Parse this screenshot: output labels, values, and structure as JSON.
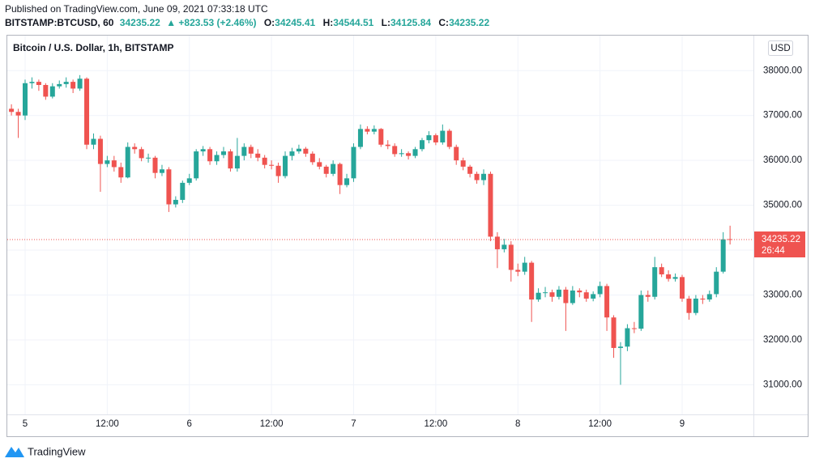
{
  "header": {
    "published": "Published on TradingView.com, June 09, 2021 07:33:18 UTC",
    "symbol": "BITSTAMP:BTCUSD, 60",
    "change": "▲ +823.53 (+2.46%)",
    "ohlc_labels": [
      "O:",
      "H:",
      "L:",
      "C:"
    ]
  },
  "footer": {
    "brand": "TradingView"
  },
  "chart_data": {
    "type": "candlestick",
    "title": "Bitcoin / U.S. Dollar, 1h, BITSTAMP",
    "currency": "USD",
    "countdown": "26:44",
    "up_color": "#26a69a",
    "down_color": "#ef5350",
    "grid": true,
    "categories": [
      null,
      null,
      "5",
      null,
      null,
      null,
      null,
      null,
      null,
      null,
      null,
      null,
      null,
      null,
      "12:00",
      null,
      null,
      null,
      null,
      null,
      null,
      null,
      null,
      null,
      null,
      null,
      "6",
      null,
      null,
      null,
      null,
      null,
      null,
      null,
      null,
      null,
      null,
      null,
      "12:00",
      null,
      null,
      null,
      null,
      null,
      null,
      null,
      null,
      null,
      null,
      null,
      "7",
      null,
      null,
      null,
      null,
      null,
      null,
      null,
      null,
      null,
      null,
      null,
      "12:00",
      null,
      null,
      null,
      null,
      null,
      null,
      null,
      null,
      null,
      null,
      null,
      "8",
      null,
      null,
      null,
      null,
      null,
      null,
      null,
      null,
      null,
      null,
      null,
      "12:00",
      null,
      null,
      null,
      null,
      null,
      null,
      null,
      null,
      null,
      null,
      null,
      "9",
      null,
      null,
      null,
      null,
      null,
      null,
      null
    ],
    "open": [
      37150,
      37080,
      37000,
      37720,
      37750,
      37680,
      37420,
      37650,
      37700,
      37750,
      37600,
      37820,
      36350,
      36480,
      35920,
      36000,
      35850,
      35620,
      36300,
      36250,
      36050,
      36060,
      35720,
      35800,
      35020,
      35120,
      35500,
      35600,
      36200,
      36250,
      35980,
      36120,
      36200,
      35820,
      36100,
      36300,
      36150,
      36060,
      35900,
      35880,
      35650,
      36100,
      36200,
      36260,
      36150,
      35960,
      35860,
      35700,
      35920,
      35450,
      35600,
      36300,
      36700,
      36640,
      36700,
      36350,
      36320,
      36140,
      36160,
      36100,
      36250,
      36450,
      36560,
      36400,
      36660,
      36300,
      36000,
      35860,
      35700,
      35560,
      35700,
      34300,
      34020,
      34120,
      33560,
      33520,
      33720,
      32900,
      33050,
      33060,
      32960,
      33120,
      32820,
      33100,
      33060,
      32920,
      33020,
      33200,
      32500,
      31820,
      31850,
      32260,
      32250,
      33000,
      32960,
      33620,
      33460,
      33360,
      33400,
      32920,
      32600,
      32920,
      32900,
      33020,
      33520,
      34245.41
    ],
    "high": [
      37250,
      37150,
      37800,
      37850,
      37800,
      37720,
      37720,
      37780,
      37850,
      37800,
      37900,
      37850,
      36600,
      36550,
      36100,
      36100,
      35950,
      36400,
      36380,
      36300,
      36150,
      36100,
      35900,
      35850,
      35200,
      35550,
      35700,
      36250,
      36320,
      36300,
      36200,
      36300,
      36250,
      36500,
      36380,
      36350,
      36250,
      36120,
      36000,
      35950,
      36200,
      36280,
      36350,
      36300,
      36200,
      36050,
      35900,
      36000,
      35950,
      35700,
      36380,
      36800,
      36760,
      36780,
      36720,
      36450,
      36380,
      36250,
      36200,
      36300,
      36500,
      36650,
      36600,
      36800,
      36700,
      36350,
      36060,
      35900,
      35750,
      35800,
      35750,
      34400,
      34250,
      34200,
      33700,
      33850,
      33760,
      33150,
      33180,
      33120,
      33200,
      33180,
      33200,
      33150,
      33120,
      33080,
      33300,
      33250,
      32550,
      31950,
      32350,
      32400,
      33100,
      33100,
      33850,
      33700,
      33550,
      33480,
      33450,
      32980,
      33000,
      33000,
      33100,
      33620,
      34400,
      34544.51
    ],
    "low": [
      37000,
      36500,
      36900,
      37600,
      37550,
      37350,
      37380,
      37600,
      37620,
      37500,
      37550,
      36250,
      36250,
      35300,
      35850,
      35750,
      35500,
      35600,
      36150,
      35980,
      35950,
      35600,
      35650,
      34850,
      34950,
      35050,
      35450,
      35550,
      36100,
      35900,
      35900,
      36050,
      35750,
      35750,
      36000,
      36050,
      35980,
      35820,
      35800,
      35500,
      35600,
      36000,
      36150,
      36080,
      35900,
      35800,
      35620,
      35650,
      35250,
      35400,
      35520,
      36250,
      36580,
      36580,
      36300,
      36250,
      36080,
      36080,
      36020,
      36050,
      36200,
      36380,
      36340,
      36350,
      36250,
      35900,
      35780,
      35620,
      35480,
      35450,
      34200,
      33600,
      33950,
      33300,
      33420,
      33450,
      32400,
      32850,
      32950,
      32850,
      32900,
      32200,
      32780,
      32950,
      32850,
      32860,
      32950,
      32200,
      31600,
      31000,
      31750,
      32150,
      32200,
      32850,
      32900,
      33400,
      33300,
      33300,
      32850,
      32450,
      32550,
      32800,
      32850,
      32950,
      33480,
      34125.84
    ],
    "close": [
      37080,
      37000,
      37720,
      37750,
      37680,
      37420,
      37650,
      37700,
      37750,
      37600,
      37820,
      36350,
      36480,
      35920,
      36000,
      35850,
      35620,
      36300,
      36250,
      36050,
      36060,
      35720,
      35800,
      35020,
      35120,
      35500,
      35600,
      36200,
      36250,
      35980,
      36120,
      36200,
      35820,
      36100,
      36300,
      36150,
      36060,
      35900,
      35880,
      35650,
      36100,
      36200,
      36260,
      36150,
      35960,
      35860,
      35700,
      35920,
      35450,
      35600,
      36300,
      36700,
      36640,
      36700,
      36350,
      36320,
      36140,
      36160,
      36100,
      36250,
      36450,
      36560,
      36400,
      36660,
      36300,
      36000,
      35860,
      35700,
      35560,
      35700,
      34300,
      34020,
      34120,
      33560,
      33520,
      33720,
      32900,
      33050,
      33060,
      32960,
      33120,
      32820,
      33100,
      33060,
      32920,
      33020,
      33200,
      32500,
      31820,
      31850,
      32260,
      32250,
      33000,
      32960,
      33620,
      33460,
      33360,
      33400,
      32920,
      32600,
      32920,
      32900,
      33020,
      33520,
      34240,
      34235.22
    ],
    "ylim": [
      30340,
      38780
    ],
    "yticks": [
      {
        "value": 31000,
        "label": "31000.00"
      },
      {
        "value": 32000,
        "label": "32000.00"
      },
      {
        "value": 33000,
        "label": "33000.00"
      },
      {
        "value": 34000,
        "label": "34000.00"
      },
      {
        "value": 35000,
        "label": "35000.00"
      },
      {
        "value": 36000,
        "label": "36000.00"
      },
      {
        "value": 37000,
        "label": "37000.00"
      },
      {
        "value": 38000,
        "label": "38000.00"
      }
    ]
  }
}
